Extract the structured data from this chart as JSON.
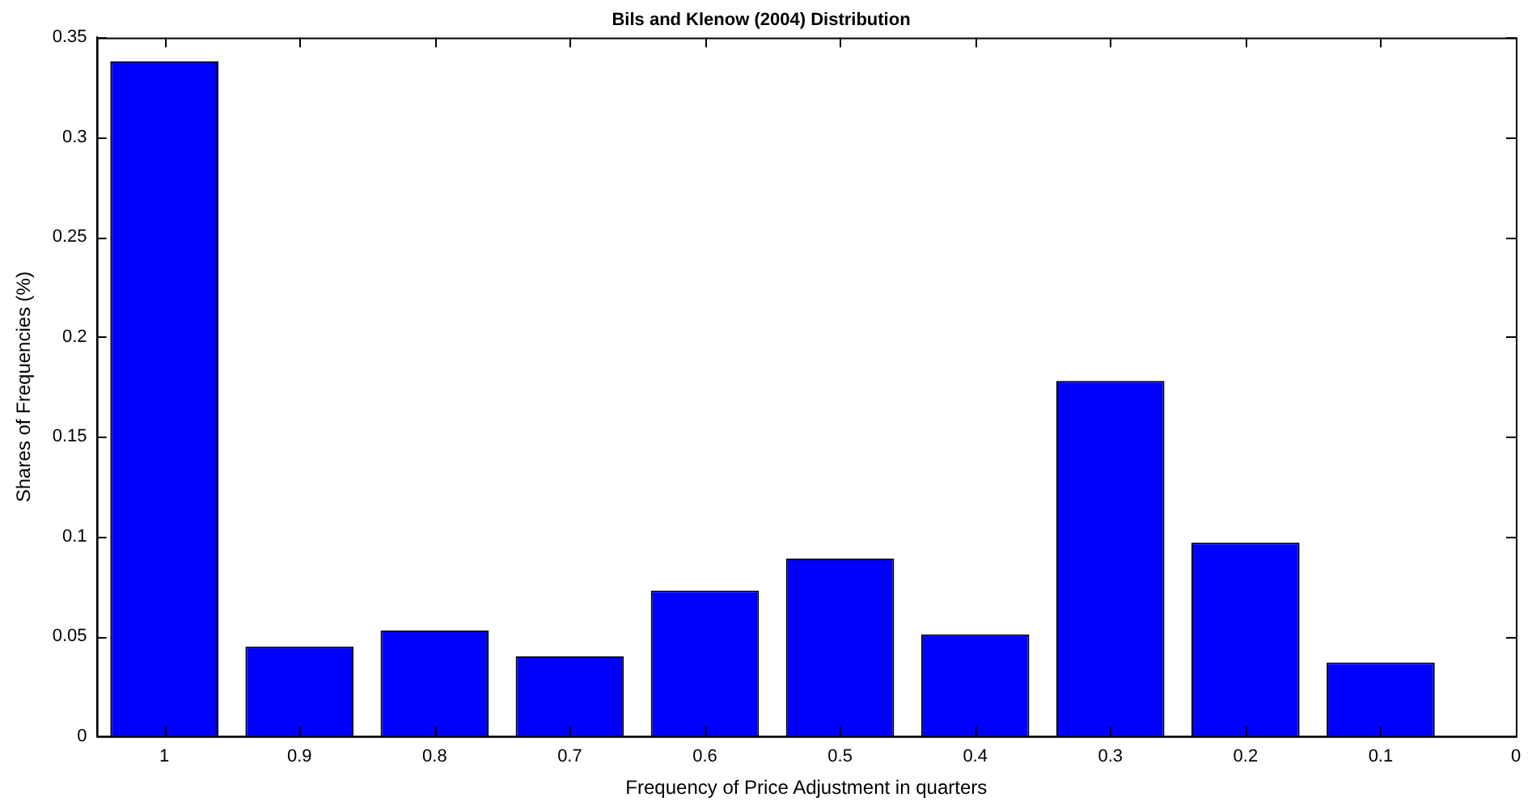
{
  "chart_data": {
    "type": "bar",
    "title": "Bils and Klenow (2004) Distribution",
    "xlabel": "Frequency of Price Adjustment in quarters",
    "ylabel": "Shares of Frequencies (%)",
    "x": [
      1,
      0.9,
      0.8,
      0.7,
      0.6,
      0.5,
      0.4,
      0.3,
      0.2,
      0.1
    ],
    "values": [
      0.338,
      0.045,
      0.053,
      0.04,
      0.073,
      0.089,
      0.051,
      0.178,
      0.097,
      0.037
    ],
    "color": "#0000ff",
    "xlim": [
      1.05,
      0
    ],
    "xticks": [
      1,
      0.9,
      0.8,
      0.7,
      0.6,
      0.5,
      0.4,
      0.3,
      0.2,
      0.1,
      0
    ],
    "ylim": [
      0,
      0.35
    ],
    "yticks": [
      0,
      0.05,
      0.1,
      0.15,
      0.2,
      0.25,
      0.3,
      0.35
    ],
    "grid": false,
    "legend": false
  }
}
